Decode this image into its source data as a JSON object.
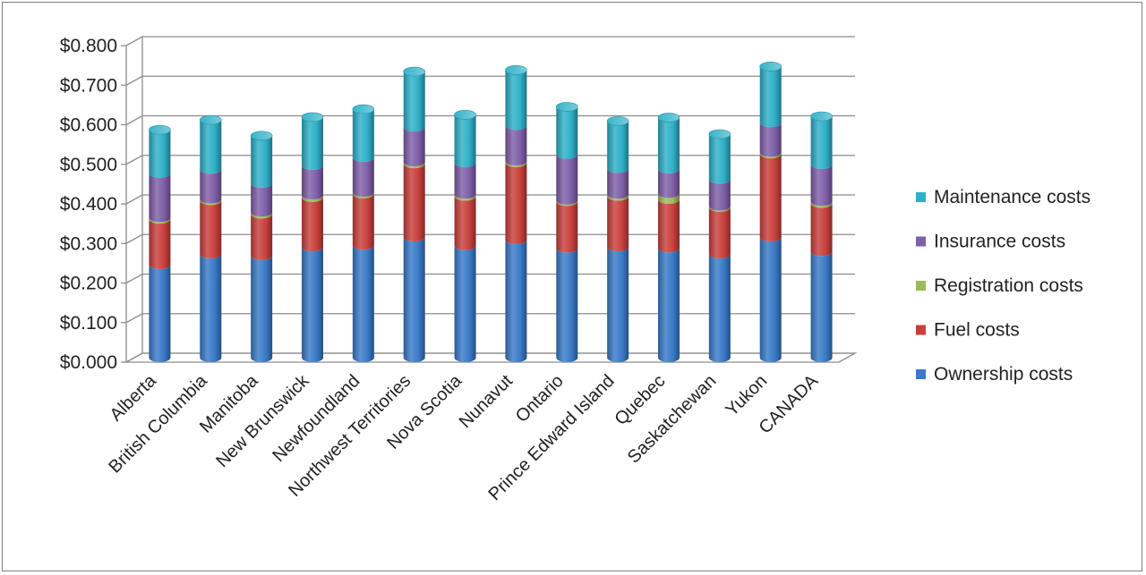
{
  "chart_data": {
    "type": "bar",
    "stacked": true,
    "three_d": true,
    "title": "",
    "xlabel": "",
    "ylabel": "",
    "ylim": [
      0,
      0.8
    ],
    "yticks": [
      "$0.000",
      "$0.100",
      "$0.200",
      "$0.300",
      "$0.400",
      "$0.500",
      "$0.600",
      "$0.700",
      "$0.800"
    ],
    "grid": true,
    "legend_position": "right",
    "categories": [
      "Alberta",
      "British Columbia",
      "Manitoba",
      "New Brunswick",
      "Newfoundland",
      "Northwest Territories",
      "Nova Scotia",
      "Nunavut",
      "Ontario",
      "Prince Edward Island",
      "Quebec",
      "Saskatchewan",
      "Yukon",
      "CANADA"
    ],
    "series": [
      {
        "name": "Ownership costs",
        "color": "#3a7ac8",
        "values": [
          0.235,
          0.262,
          0.258,
          0.28,
          0.284,
          0.305,
          0.283,
          0.298,
          0.277,
          0.28,
          0.277,
          0.262,
          0.305,
          0.268
        ]
      },
      {
        "name": "Fuel costs",
        "color": "#c8403c",
        "values": [
          0.115,
          0.135,
          0.105,
          0.125,
          0.13,
          0.185,
          0.125,
          0.195,
          0.118,
          0.128,
          0.123,
          0.118,
          0.21,
          0.122
        ]
      },
      {
        "name": "Registration costs",
        "color": "#9bbb59",
        "values": [
          0.004,
          0.004,
          0.005,
          0.006,
          0.004,
          0.005,
          0.005,
          0.004,
          0.003,
          0.005,
          0.015,
          0.003,
          0.004,
          0.005
        ]
      },
      {
        "name": "Insurance costs",
        "color": "#7f5fa8",
        "values": [
          0.112,
          0.075,
          0.073,
          0.075,
          0.088,
          0.088,
          0.08,
          0.09,
          0.116,
          0.065,
          0.062,
          0.068,
          0.075,
          0.093
        ]
      },
      {
        "name": "Maintenance costs",
        "color": "#2fb0c8",
        "values": [
          0.11,
          0.125,
          0.12,
          0.122,
          0.122,
          0.14,
          0.121,
          0.14,
          0.12,
          0.12,
          0.13,
          0.114,
          0.142,
          0.122
        ]
      }
    ]
  }
}
